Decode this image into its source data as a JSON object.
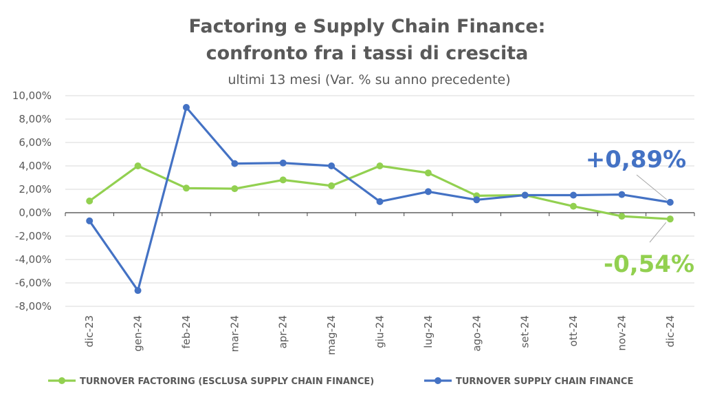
{
  "chart_data": {
    "type": "line",
    "title_line1": "Factoring e Supply Chain Finance:",
    "title_line2": "confronto fra i tassi di crescita",
    "subtitle": "ultimi 13 mesi (Var. % su anno precedente)",
    "categories": [
      "dic-23",
      "gen-24",
      "feb-24",
      "mar-24",
      "apr-24",
      "mag-24",
      "giu-24",
      "lug-24",
      "ago-24",
      "set-24",
      "ott-24",
      "nov-24",
      "dic-24"
    ],
    "y_ticks": [
      "10,00%",
      "8,00%",
      "6,00%",
      "4,00%",
      "2,00%",
      "0,00%",
      "-2,00%",
      "-4,00%",
      "-6,00%",
      "-8,00%"
    ],
    "ylim": [
      -8,
      10
    ],
    "grid": true,
    "legend_position": "bottom",
    "series": [
      {
        "name": "TURNOVER FACTORING (ESCLUSA SUPPLY CHAIN FINANCE)",
        "color": "#92d050",
        "values": [
          1.0,
          4.0,
          2.1,
          2.05,
          2.8,
          2.3,
          4.0,
          3.4,
          1.45,
          1.5,
          0.55,
          -0.3,
          -0.54
        ]
      },
      {
        "name": "TURNOVER SUPPLY CHAIN FINANCE",
        "color": "#4472c4",
        "values": [
          -0.7,
          -6.65,
          9.0,
          4.2,
          4.25,
          4.0,
          0.95,
          1.8,
          1.1,
          1.5,
          1.5,
          1.55,
          0.89
        ]
      }
    ],
    "annotations": [
      {
        "text": "+0,89%",
        "series": 1,
        "color": "#4472c4"
      },
      {
        "text": "-0,54%",
        "series": 0,
        "color": "#92d050"
      }
    ]
  }
}
